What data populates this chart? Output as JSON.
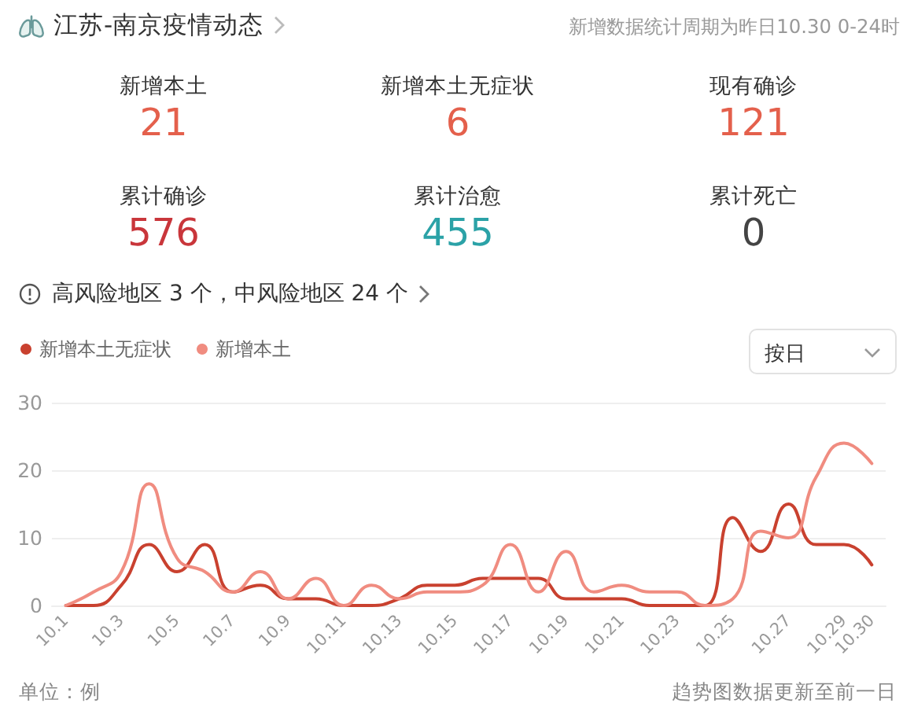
{
  "chart_data": [
    {
      "type": "other",
      "title": "江苏-南京疫情动态",
      "subtitle": "新增数据统计周期为昨日10.30 0-24时",
      "categories": [
        "新增本土",
        "新增本土无症状",
        "现有确诊",
        "累计确诊",
        "累计治愈",
        "累计死亡"
      ],
      "values": [
        21,
        6,
        121,
        576,
        455,
        0
      ],
      "colors": [
        "#e4604c",
        "#e4604c",
        "#e4604c",
        "#c9363b",
        "#2ba2a7",
        "#444444"
      ],
      "data_labels": true,
      "annotations": [
        "高风险地区 3 个，中风险地区 24 个"
      ]
    },
    {
      "type": "line",
      "ylabel": "单位：例",
      "annotations": [
        "趋势图数据更新至前一日",
        "按日"
      ],
      "categories": [
        "10.1",
        null,
        "10.3",
        null,
        "10.5",
        null,
        "10.7",
        null,
        "10.9",
        null,
        "10.11",
        null,
        "10.13",
        null,
        "10.15",
        null,
        "10.17",
        null,
        "10.19",
        null,
        "10.21",
        null,
        "10.23",
        null,
        "10.25",
        null,
        "10.27",
        null,
        "10.29",
        "10.30"
      ],
      "series": [
        {
          "name": "新增本土无症状",
          "color": "#c9412f",
          "values": [
            0,
            0,
            3,
            9,
            5,
            9,
            2,
            3,
            1,
            1,
            0,
            0,
            1,
            3,
            3,
            4,
            4,
            4,
            1,
            1,
            1,
            0,
            0,
            0,
            13,
            8,
            15,
            9,
            9,
            6
          ]
        },
        {
          "name": "新增本土",
          "color": "#f08c80",
          "values": [
            0,
            2,
            5,
            18,
            7,
            5,
            2,
            5,
            1,
            4,
            0,
            3,
            1,
            2,
            2,
            3,
            9,
            2,
            8,
            2,
            3,
            2,
            2,
            0,
            1,
            11,
            10,
            19,
            24,
            21
          ]
        }
      ],
      "ylim": [
        0,
        30
      ],
      "yticks": [
        0,
        10,
        20,
        30
      ],
      "grid": "y",
      "legend": "top left",
      "marker": "none",
      "line_style": "solid"
    }
  ]
}
